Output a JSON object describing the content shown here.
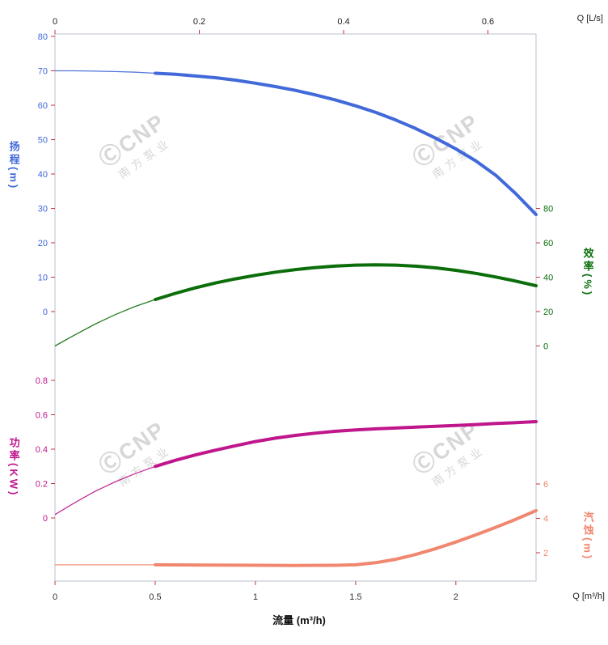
{
  "chart_data": {
    "type": "line",
    "title": "",
    "x_bottom": {
      "label": "流量 (m³/h)",
      "unit": "Q [m³/h]",
      "ticks": [
        0,
        0.5,
        1,
        1.5,
        2
      ],
      "max": 2.4,
      "tick_label_color": "#333333"
    },
    "x_top": {
      "unit": "Q [L/s]",
      "ticks": [
        0,
        0.2,
        0.4,
        0.6
      ],
      "ls_to_m3h": 3.6
    },
    "axes": {
      "head": {
        "title": "扬程",
        "unit": "(m)",
        "side": "left",
        "ticks": [
          0,
          10,
          20,
          30,
          40,
          50,
          60,
          70,
          80
        ],
        "range": [
          0,
          80
        ],
        "color": "#4169d9"
      },
      "efficiency": {
        "title": "效率",
        "unit": "(%)",
        "side": "right",
        "ticks": [
          0,
          20,
          40,
          60,
          80
        ],
        "range": [
          0,
          80
        ],
        "color": "#0b6e0b"
      },
      "power": {
        "title": "功率",
        "unit": "(KW)",
        "side": "left",
        "ticks": [
          0,
          0.2,
          0.4,
          0.6,
          0.8
        ],
        "range": [
          0,
          0.8
        ],
        "color": "#c0168c"
      },
      "npsh": {
        "title": "汽蚀",
        "unit": "(m)",
        "side": "right",
        "ticks": [
          2,
          4,
          6
        ],
        "range": [
          0,
          6
        ],
        "color": "#f0876e"
      }
    },
    "series": [
      {
        "name": "head",
        "axis": "head",
        "color": "#4169d9",
        "rated_split": 0.5,
        "points": [
          [
            0,
            70
          ],
          [
            0.1,
            70
          ],
          [
            0.2,
            69.9
          ],
          [
            0.3,
            69.8
          ],
          [
            0.4,
            69.6
          ],
          [
            0.5,
            69.3
          ],
          [
            0.6,
            69
          ],
          [
            0.7,
            68.5
          ],
          [
            0.8,
            68
          ],
          [
            0.9,
            67.3
          ],
          [
            1,
            66.4
          ],
          [
            1.1,
            65.4
          ],
          [
            1.2,
            64.3
          ],
          [
            1.3,
            63
          ],
          [
            1.4,
            61.5
          ],
          [
            1.5,
            59.8
          ],
          [
            1.6,
            57.9
          ],
          [
            1.7,
            55.7
          ],
          [
            1.8,
            53.2
          ],
          [
            1.9,
            50.4
          ],
          [
            2,
            47.3
          ],
          [
            2.1,
            43.8
          ],
          [
            2.2,
            39.6
          ],
          [
            2.3,
            34.2
          ],
          [
            2.4,
            28.2
          ]
        ]
      },
      {
        "name": "efficiency",
        "axis": "efficiency",
        "color": "#0b6e0b",
        "rated_split": 0.5,
        "points": [
          [
            0,
            0
          ],
          [
            0.1,
            6.5
          ],
          [
            0.2,
            12.7
          ],
          [
            0.3,
            18.2
          ],
          [
            0.4,
            23
          ],
          [
            0.5,
            27
          ],
          [
            0.6,
            30.6
          ],
          [
            0.7,
            33.8
          ],
          [
            0.8,
            36.6
          ],
          [
            0.9,
            39
          ],
          [
            1,
            41.1
          ],
          [
            1.1,
            42.9
          ],
          [
            1.2,
            44.4
          ],
          [
            1.3,
            45.6
          ],
          [
            1.4,
            46.5
          ],
          [
            1.5,
            47
          ],
          [
            1.6,
            47.2
          ],
          [
            1.7,
            47
          ],
          [
            1.8,
            46.4
          ],
          [
            1.9,
            45.4
          ],
          [
            2,
            44
          ],
          [
            2.1,
            42.2
          ],
          [
            2.2,
            40.1
          ],
          [
            2.3,
            37.7
          ],
          [
            2.4,
            35
          ]
        ]
      },
      {
        "name": "power",
        "axis": "power",
        "color": "#c0168c",
        "rated_split": 0.5,
        "points": [
          [
            0,
            0.02
          ],
          [
            0.1,
            0.09
          ],
          [
            0.2,
            0.155
          ],
          [
            0.3,
            0.21
          ],
          [
            0.4,
            0.258
          ],
          [
            0.5,
            0.3
          ],
          [
            0.6,
            0.335
          ],
          [
            0.7,
            0.366
          ],
          [
            0.8,
            0.394
          ],
          [
            0.9,
            0.42
          ],
          [
            1,
            0.444
          ],
          [
            1.1,
            0.464
          ],
          [
            1.2,
            0.48
          ],
          [
            1.3,
            0.493
          ],
          [
            1.4,
            0.504
          ],
          [
            1.5,
            0.512
          ],
          [
            1.6,
            0.518
          ],
          [
            1.7,
            0.523
          ],
          [
            1.8,
            0.528
          ],
          [
            1.9,
            0.533
          ],
          [
            2,
            0.538
          ],
          [
            2.1,
            0.543
          ],
          [
            2.2,
            0.549
          ],
          [
            2.3,
            0.554
          ],
          [
            2.4,
            0.56
          ]
        ]
      },
      {
        "name": "npsh",
        "axis": "npsh",
        "color": "#f0876e",
        "rated_split": 0.5,
        "points": [
          [
            0,
            1.3
          ],
          [
            0.5,
            1.3
          ],
          [
            0.8,
            1.28
          ],
          [
            1,
            1.27
          ],
          [
            1.2,
            1.26
          ],
          [
            1.4,
            1.27
          ],
          [
            1.5,
            1.3
          ],
          [
            1.6,
            1.42
          ],
          [
            1.7,
            1.62
          ],
          [
            1.8,
            1.9
          ],
          [
            1.9,
            2.24
          ],
          [
            2,
            2.62
          ],
          [
            2.1,
            3.04
          ],
          [
            2.2,
            3.48
          ],
          [
            2.3,
            3.95
          ],
          [
            2.4,
            4.45
          ]
        ]
      }
    ],
    "style": {
      "border_color": "#b9c2cf",
      "tick_mark_color": "#cc3333"
    },
    "watermark": {
      "line1": "ⒸCNP",
      "line2": "南方泵业",
      "color": "#d7d7d7"
    }
  }
}
